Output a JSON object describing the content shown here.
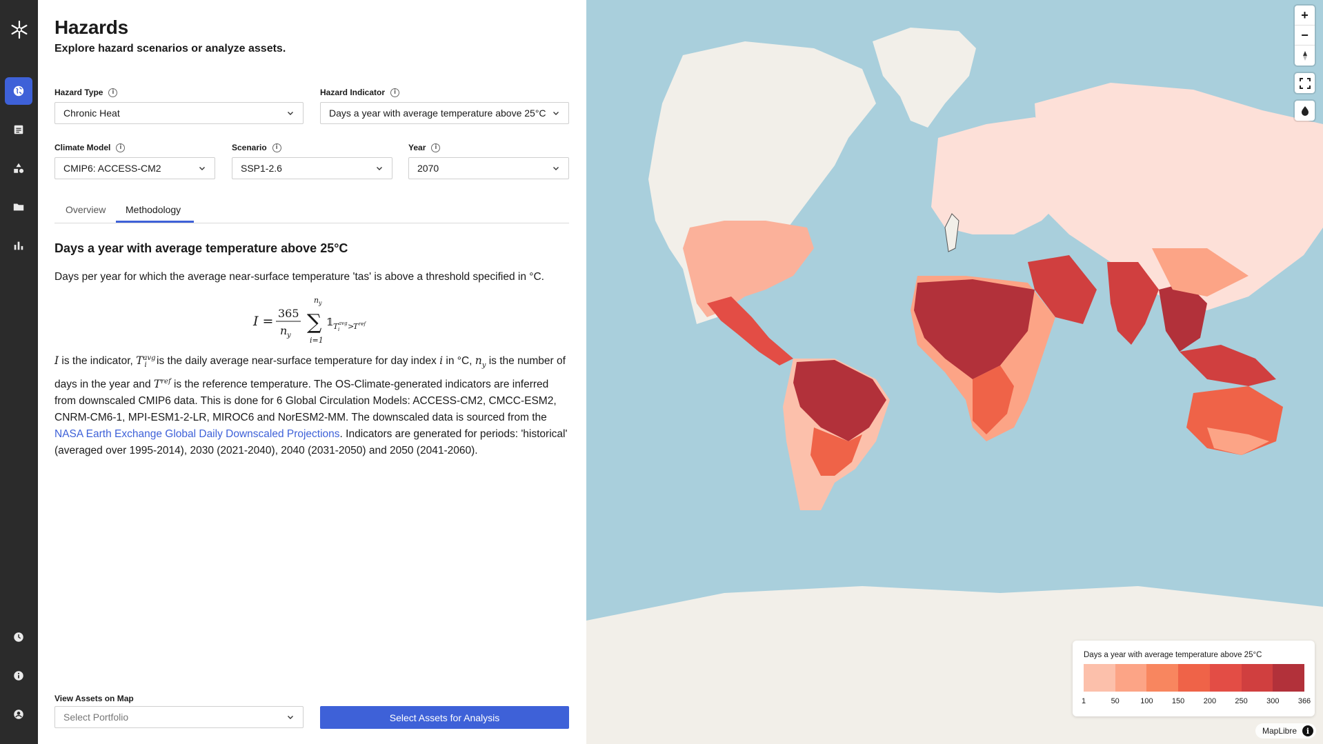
{
  "nav": {
    "logo": "logo-icon",
    "items": [
      {
        "icon": "globe-icon",
        "active": true
      },
      {
        "icon": "document-icon",
        "active": false
      },
      {
        "icon": "shapes-icon",
        "active": false
      },
      {
        "icon": "folder-icon",
        "active": false
      },
      {
        "icon": "bar-chart-icon",
        "active": false
      }
    ],
    "bottom_items": [
      {
        "icon": "clock-icon"
      },
      {
        "icon": "info-icon"
      },
      {
        "icon": "account-icon"
      }
    ]
  },
  "header": {
    "title": "Hazards",
    "subtitle": "Explore hazard scenarios or analyze assets."
  },
  "filters": {
    "hazard_type": {
      "label": "Hazard Type",
      "value": "Chronic Heat"
    },
    "hazard_indicator": {
      "label": "Hazard Indicator",
      "value": "Days a year with average temperature above 25°C"
    },
    "climate_model": {
      "label": "Climate Model",
      "value": "CMIP6: ACCESS-CM2"
    },
    "scenario": {
      "label": "Scenario",
      "value": "SSP1-2.6"
    },
    "year": {
      "label": "Year",
      "value": "2070"
    }
  },
  "tabs": [
    {
      "label": "Overview",
      "active": false
    },
    {
      "label": "Methodology",
      "active": true
    }
  ],
  "methodology": {
    "heading": "Days a year with average temperature above 25°C",
    "intro": "Days per year for which the average near-surface temperature 'tas' is above a threshold specified in °C.",
    "formula": {
      "lhs": "I =",
      "numerator": "365",
      "denominator": "n",
      "denominator_sub": "y",
      "sum_upper": "n",
      "sum_upper_sub": "y",
      "sum_lower": "i=1",
      "indicator_symbol": "𝟙",
      "indicator_condition": "T",
      "cond_sup": "avg",
      "cond_sub": "i",
      "cond_rel": ">",
      "cond_ref": "T",
      "cond_ref_sup": "ref"
    },
    "body": {
      "p1_sym_I": "I",
      "p1a": " is the indicator, ",
      "p1_sym_T": "T",
      "p1_sym_T_sup": "avg",
      "p1_sym_T_sub": "i",
      "p1b": " is the daily average near-surface temperature for day index ",
      "p1_sym_i": "i",
      "p1c": " in °C, ",
      "p1_sym_n": "n",
      "p1_sym_n_sub": "y",
      "p1d": " is the number of days in the year and ",
      "p1_sym_Tref": "T",
      "p1_sym_Tref_sup": "ref",
      "p1e": " is the reference temperature. The OS-Climate-generated indicators are inferred from downscaled CMIP6 data. This is done for 6 Global Circulation Models: ACCESS-CM2, CMCC-ESM2, CNRM-CM6-1, MPI-ESM1-2-LR, MIROC6 and NorESM2-MM. The downscaled data is sourced from the ",
      "link": "NASA Earth Exchange Global Daily Downscaled Projections",
      "p1f": ". Indicators are generated for periods: 'historical' (averaged over 1995-2014), 2030 (2021-2040), 2040 (2031-2050) and 2050 (2041-2060)."
    }
  },
  "assets": {
    "label": "View Assets on Map",
    "portfolio_placeholder": "Select Portfolio",
    "analyze_button": "Select Assets for Analysis"
  },
  "map": {
    "controls": [
      "zoom-in-icon",
      "zoom-out-icon",
      "compass-icon",
      "fullscreen-icon",
      "globe-toggle-icon"
    ],
    "zoom_in": "+",
    "zoom_out": "−",
    "legend": {
      "title": "Days a year with average temperature above 25°C",
      "ticks": [
        "1",
        "50",
        "100",
        "150",
        "200",
        "250",
        "300",
        "366"
      ],
      "colors": [
        "#fde0d8",
        "#fcc0ab",
        "#fca486",
        "#f8865f",
        "#ef6348",
        "#e34d45",
        "#d03f3f",
        "#b2313a"
      ]
    },
    "attribution": "MapLibre"
  }
}
